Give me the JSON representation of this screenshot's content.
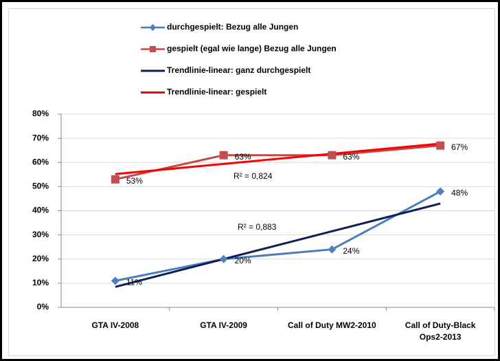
{
  "chart_data": {
    "type": "line",
    "categories": [
      "GTA IV-2008",
      "GTA IV-2009",
      "Call of Duty MW2-2010",
      "Call of Duty-Black Ops2-2013"
    ],
    "series": [
      {
        "name": "durchgespielt: Bezug alle Jungen",
        "color": "#4a7ebb",
        "marker": "diamond",
        "values": [
          11,
          20,
          24,
          48
        ],
        "value_labels": [
          "11%",
          "20%",
          "24%",
          "48%"
        ]
      },
      {
        "name": "gespielt (egal wie lange) Bezug alle Jungen",
        "color": "#be4b48",
        "marker": "square",
        "values": [
          53,
          63,
          63,
          67
        ],
        "value_labels": [
          "53%",
          "63%",
          "63%",
          "67%"
        ]
      },
      {
        "name": "Trendlinie-linear: ganz durchgespielt",
        "color": "#0f1f5a",
        "values": [
          8.5,
          20,
          31.5,
          43
        ]
      },
      {
        "name": "Trendlinie-linear: gespielt",
        "color": "#ff0000",
        "values": [
          55.2,
          59.4,
          63.6,
          67.8
        ]
      }
    ],
    "annotations": [
      "R² = 0,824",
      "R² = 0,883"
    ],
    "ylim": [
      0,
      80
    ],
    "yticks": [
      {
        "value": 0,
        "label": "0%"
      },
      {
        "value": 10,
        "label": "10%"
      },
      {
        "value": 20,
        "label": "20%"
      },
      {
        "value": 30,
        "label": "30%"
      },
      {
        "value": 40,
        "label": "40%"
      },
      {
        "value": 50,
        "label": "50%"
      },
      {
        "value": 60,
        "label": "60%"
      },
      {
        "value": 70,
        "label": "70%"
      },
      {
        "value": 80,
        "label": "80%"
      }
    ],
    "grid": true
  }
}
